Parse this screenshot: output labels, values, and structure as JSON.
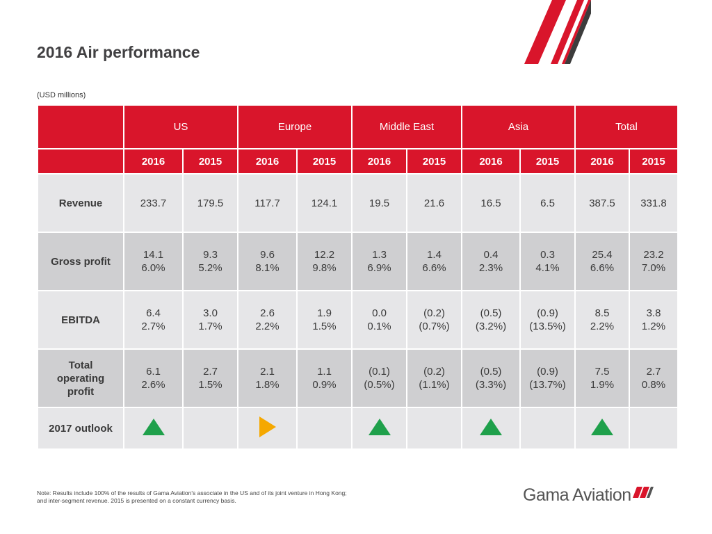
{
  "page": {
    "title": "2016 Air performance",
    "units": "(USD millions)",
    "note_line1": "Note: Results include 100% of the results of Gama Aviation's associate in the US and of its joint venture in Hong Kong;",
    "note_line2": "and inter-segment revenue. 2015 is presented on a constant currency basis.",
    "logo_text": "Gama Aviation"
  },
  "colors": {
    "header_red": "#d9152b",
    "row_light": "#e6e6e8",
    "row_dark": "#cfcfd1",
    "up_green": "#1fa04b",
    "neutral_amber": "#f5a800"
  },
  "table": {
    "regions": [
      "US",
      "Europe",
      "Middle East",
      "Asia",
      "Total"
    ],
    "years": [
      "2016",
      "2015",
      "2016",
      "2015",
      "2016",
      "2015",
      "2016",
      "2015",
      "2016",
      "2015"
    ],
    "rows": [
      {
        "label": "Revenue",
        "values": [
          "233.7",
          "179.5",
          "117.7",
          "124.1",
          "19.5",
          "21.6",
          "16.5",
          "6.5",
          "387.5",
          "331.8"
        ],
        "margins": [
          "",
          "",
          "",
          "",
          "",
          "",
          "",
          "",
          "",
          ""
        ]
      },
      {
        "label": "Gross profit",
        "values": [
          "14.1",
          "9.3",
          "9.6",
          "12.2",
          "1.3",
          "1.4",
          "0.4",
          "0.3",
          "25.4",
          "23.2"
        ],
        "margins": [
          "6.0%",
          "5.2%",
          "8.1%",
          "9.8%",
          "6.9%",
          "6.6%",
          "2.3%",
          "4.1%",
          "6.6%",
          "7.0%"
        ]
      },
      {
        "label": "EBITDA",
        "values": [
          "6.4",
          "3.0",
          "2.6",
          "1.9",
          "0.0",
          "(0.2)",
          "(0.5)",
          "(0.9)",
          "8.5",
          "3.8"
        ],
        "margins": [
          "2.7%",
          "1.7%",
          "2.2%",
          "1.5%",
          "0.1%",
          "(0.7%)",
          "(3.2%)",
          "(13.5%)",
          "2.2%",
          "1.2%"
        ]
      },
      {
        "label_line1": "Total",
        "label_line2": "operating",
        "label_line3": "profit",
        "values": [
          "6.1",
          "2.7",
          "2.1",
          "1.1",
          "(0.1)",
          "(0.2)",
          "(0.5)",
          "(0.9)",
          "7.5",
          "2.7"
        ],
        "margins": [
          "2.6%",
          "1.5%",
          "1.8%",
          "0.9%",
          "(0.5%)",
          "(1.1%)",
          "(3.3%)",
          "(13.7%)",
          "1.9%",
          "0.8%"
        ]
      }
    ],
    "outlook": {
      "label": "2017 outlook",
      "indicators": [
        "up-arrow-icon",
        "",
        "right-arrow-icon",
        "",
        "up-arrow-icon",
        "",
        "up-arrow-icon",
        "",
        "up-arrow-icon",
        ""
      ]
    }
  }
}
